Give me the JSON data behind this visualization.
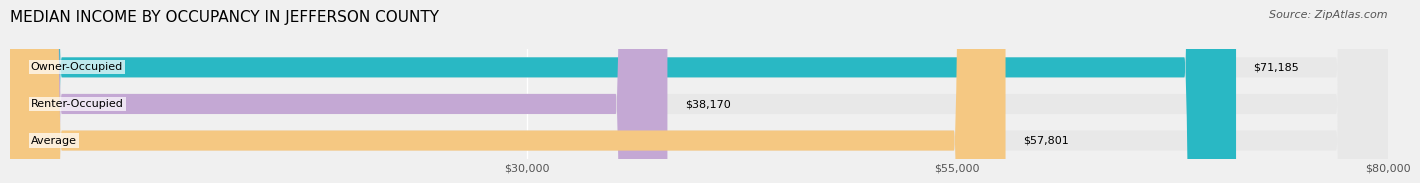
{
  "title": "MEDIAN INCOME BY OCCUPANCY IN JEFFERSON COUNTY",
  "source": "Source: ZipAtlas.com",
  "categories": [
    "Owner-Occupied",
    "Renter-Occupied",
    "Average"
  ],
  "values": [
    71185,
    38170,
    57801
  ],
  "labels": [
    "$71,185",
    "$38,170",
    "$57,801"
  ],
  "bar_colors": [
    "#29b8c4",
    "#c4a8d4",
    "#f5c882"
  ],
  "xlim": [
    0,
    80000
  ],
  "xticks": [
    30000,
    55000,
    80000
  ],
  "xtick_labels": [
    "$30,000",
    "$55,000",
    "$80,000"
  ],
  "title_fontsize": 11,
  "source_fontsize": 8,
  "label_fontsize": 8,
  "tick_fontsize": 8,
  "bar_height": 0.55,
  "background_color": "#f0f0f0",
  "bar_background_color": "#e8e8e8"
}
